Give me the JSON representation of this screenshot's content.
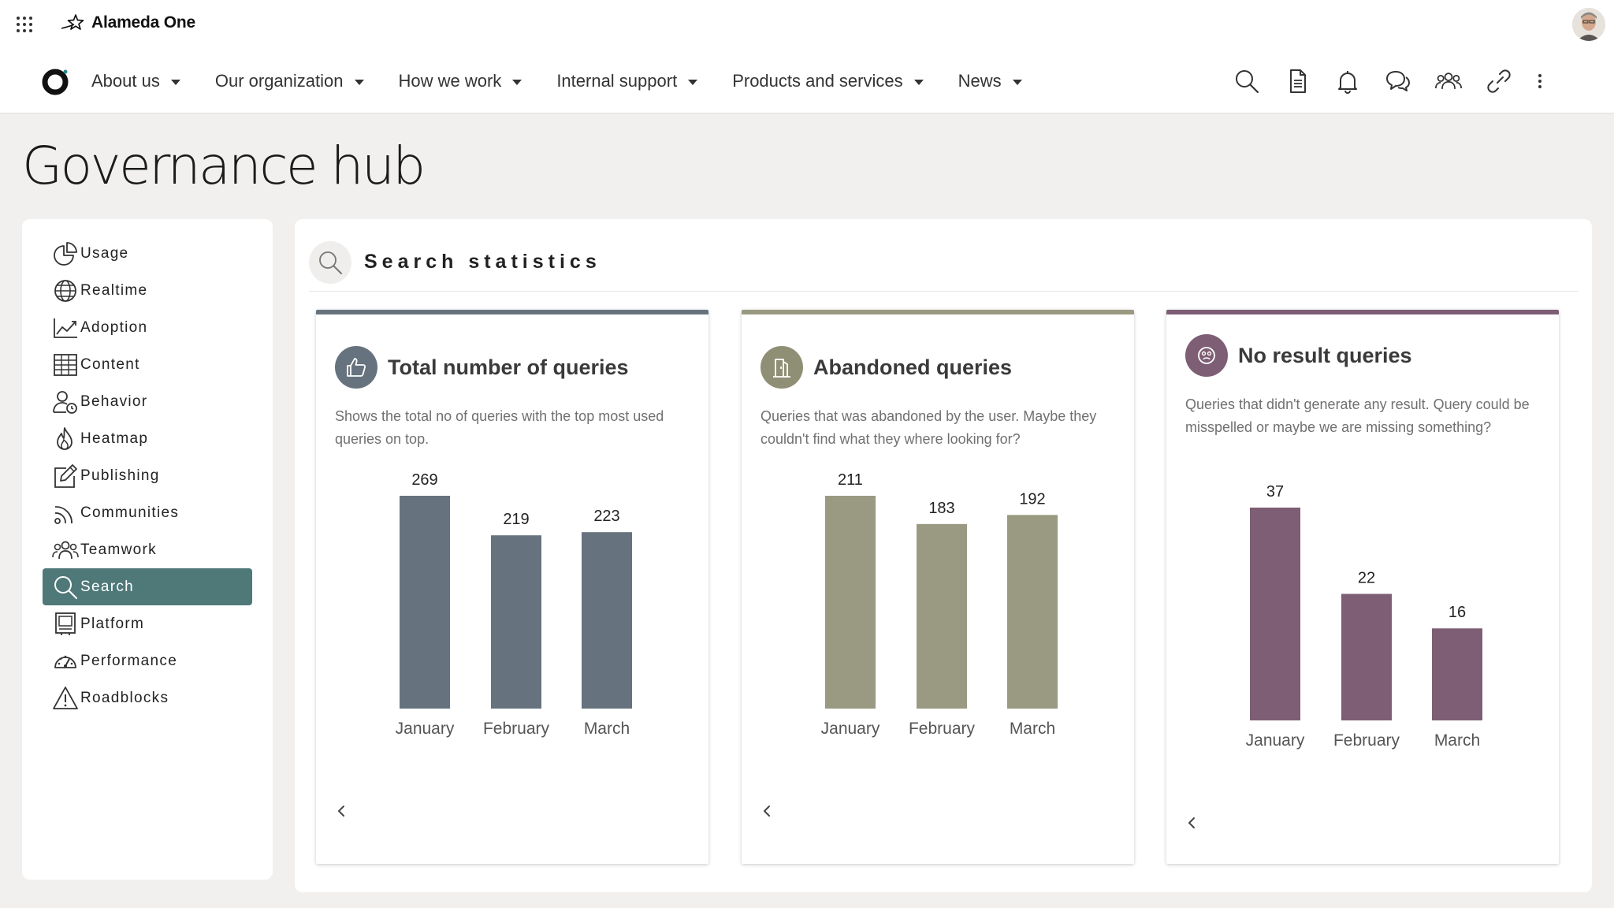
{
  "app": {
    "brand": "Alameda One"
  },
  "nav": {
    "items": [
      {
        "label": "About us"
      },
      {
        "label": "Our organization"
      },
      {
        "label": "How we work"
      },
      {
        "label": "Internal support"
      },
      {
        "label": "Products and services"
      },
      {
        "label": "News"
      }
    ],
    "actions": [
      "search-icon",
      "document-icon",
      "bell-icon",
      "chat-icon",
      "people-icon",
      "link-icon",
      "more-vertical-icon"
    ]
  },
  "page": {
    "title": "Governance hub"
  },
  "sidebar": {
    "active": "Search",
    "items": [
      {
        "label": "Usage",
        "icon": "pie-chart-icon"
      },
      {
        "label": "Realtime",
        "icon": "globe-icon"
      },
      {
        "label": "Adoption",
        "icon": "trend-chart-icon"
      },
      {
        "label": "Content",
        "icon": "table-icon"
      },
      {
        "label": "Behavior",
        "icon": "user-clock-icon"
      },
      {
        "label": "Heatmap",
        "icon": "flame-icon"
      },
      {
        "label": "Publishing",
        "icon": "edit-icon"
      },
      {
        "label": "Communities",
        "icon": "rss-icon"
      },
      {
        "label": "Teamwork",
        "icon": "team-icon"
      },
      {
        "label": "Search",
        "icon": "search-icon"
      },
      {
        "label": "Platform",
        "icon": "monitor-icon"
      },
      {
        "label": "Performance",
        "icon": "gauge-icon"
      },
      {
        "label": "Roadblocks",
        "icon": "warning-icon"
      }
    ]
  },
  "section": {
    "title": "Search statistics"
  },
  "panels": [
    {
      "title": "Total number of queries",
      "description": "Shows the total no of queries with the top most used queries on top.",
      "icon": "thumbs-up-icon",
      "color": "#66737f",
      "badge_color": "#66737f"
    },
    {
      "title": "Abandoned queries",
      "description": "Queries that was abandoned by the user. Maybe they couldn't find what they where looking for?",
      "icon": "exit-door-icon",
      "color": "#9a9a82",
      "badge_color": "#8f8f76"
    },
    {
      "title": "No result queries",
      "description": "Queries that didn't generate any result. Query could be misspelled or maybe we are missing something?",
      "icon": "sad-face-icon",
      "color": "#7d5e74",
      "badge_color": "#7d5e74"
    }
  ],
  "chart_data": [
    {
      "type": "bar",
      "title": "Total number of queries",
      "categories": [
        "January",
        "February",
        "March"
      ],
      "values": [
        269,
        219,
        223
      ],
      "color": "#66737f"
    },
    {
      "type": "bar",
      "title": "Abandoned queries",
      "categories": [
        "January",
        "February",
        "March"
      ],
      "values": [
        211,
        183,
        192
      ],
      "color": "#9a9a82"
    },
    {
      "type": "bar",
      "title": "No result queries",
      "categories": [
        "January",
        "February",
        "March"
      ],
      "values": [
        37,
        22,
        16
      ],
      "color": "#7d5e74"
    }
  ]
}
